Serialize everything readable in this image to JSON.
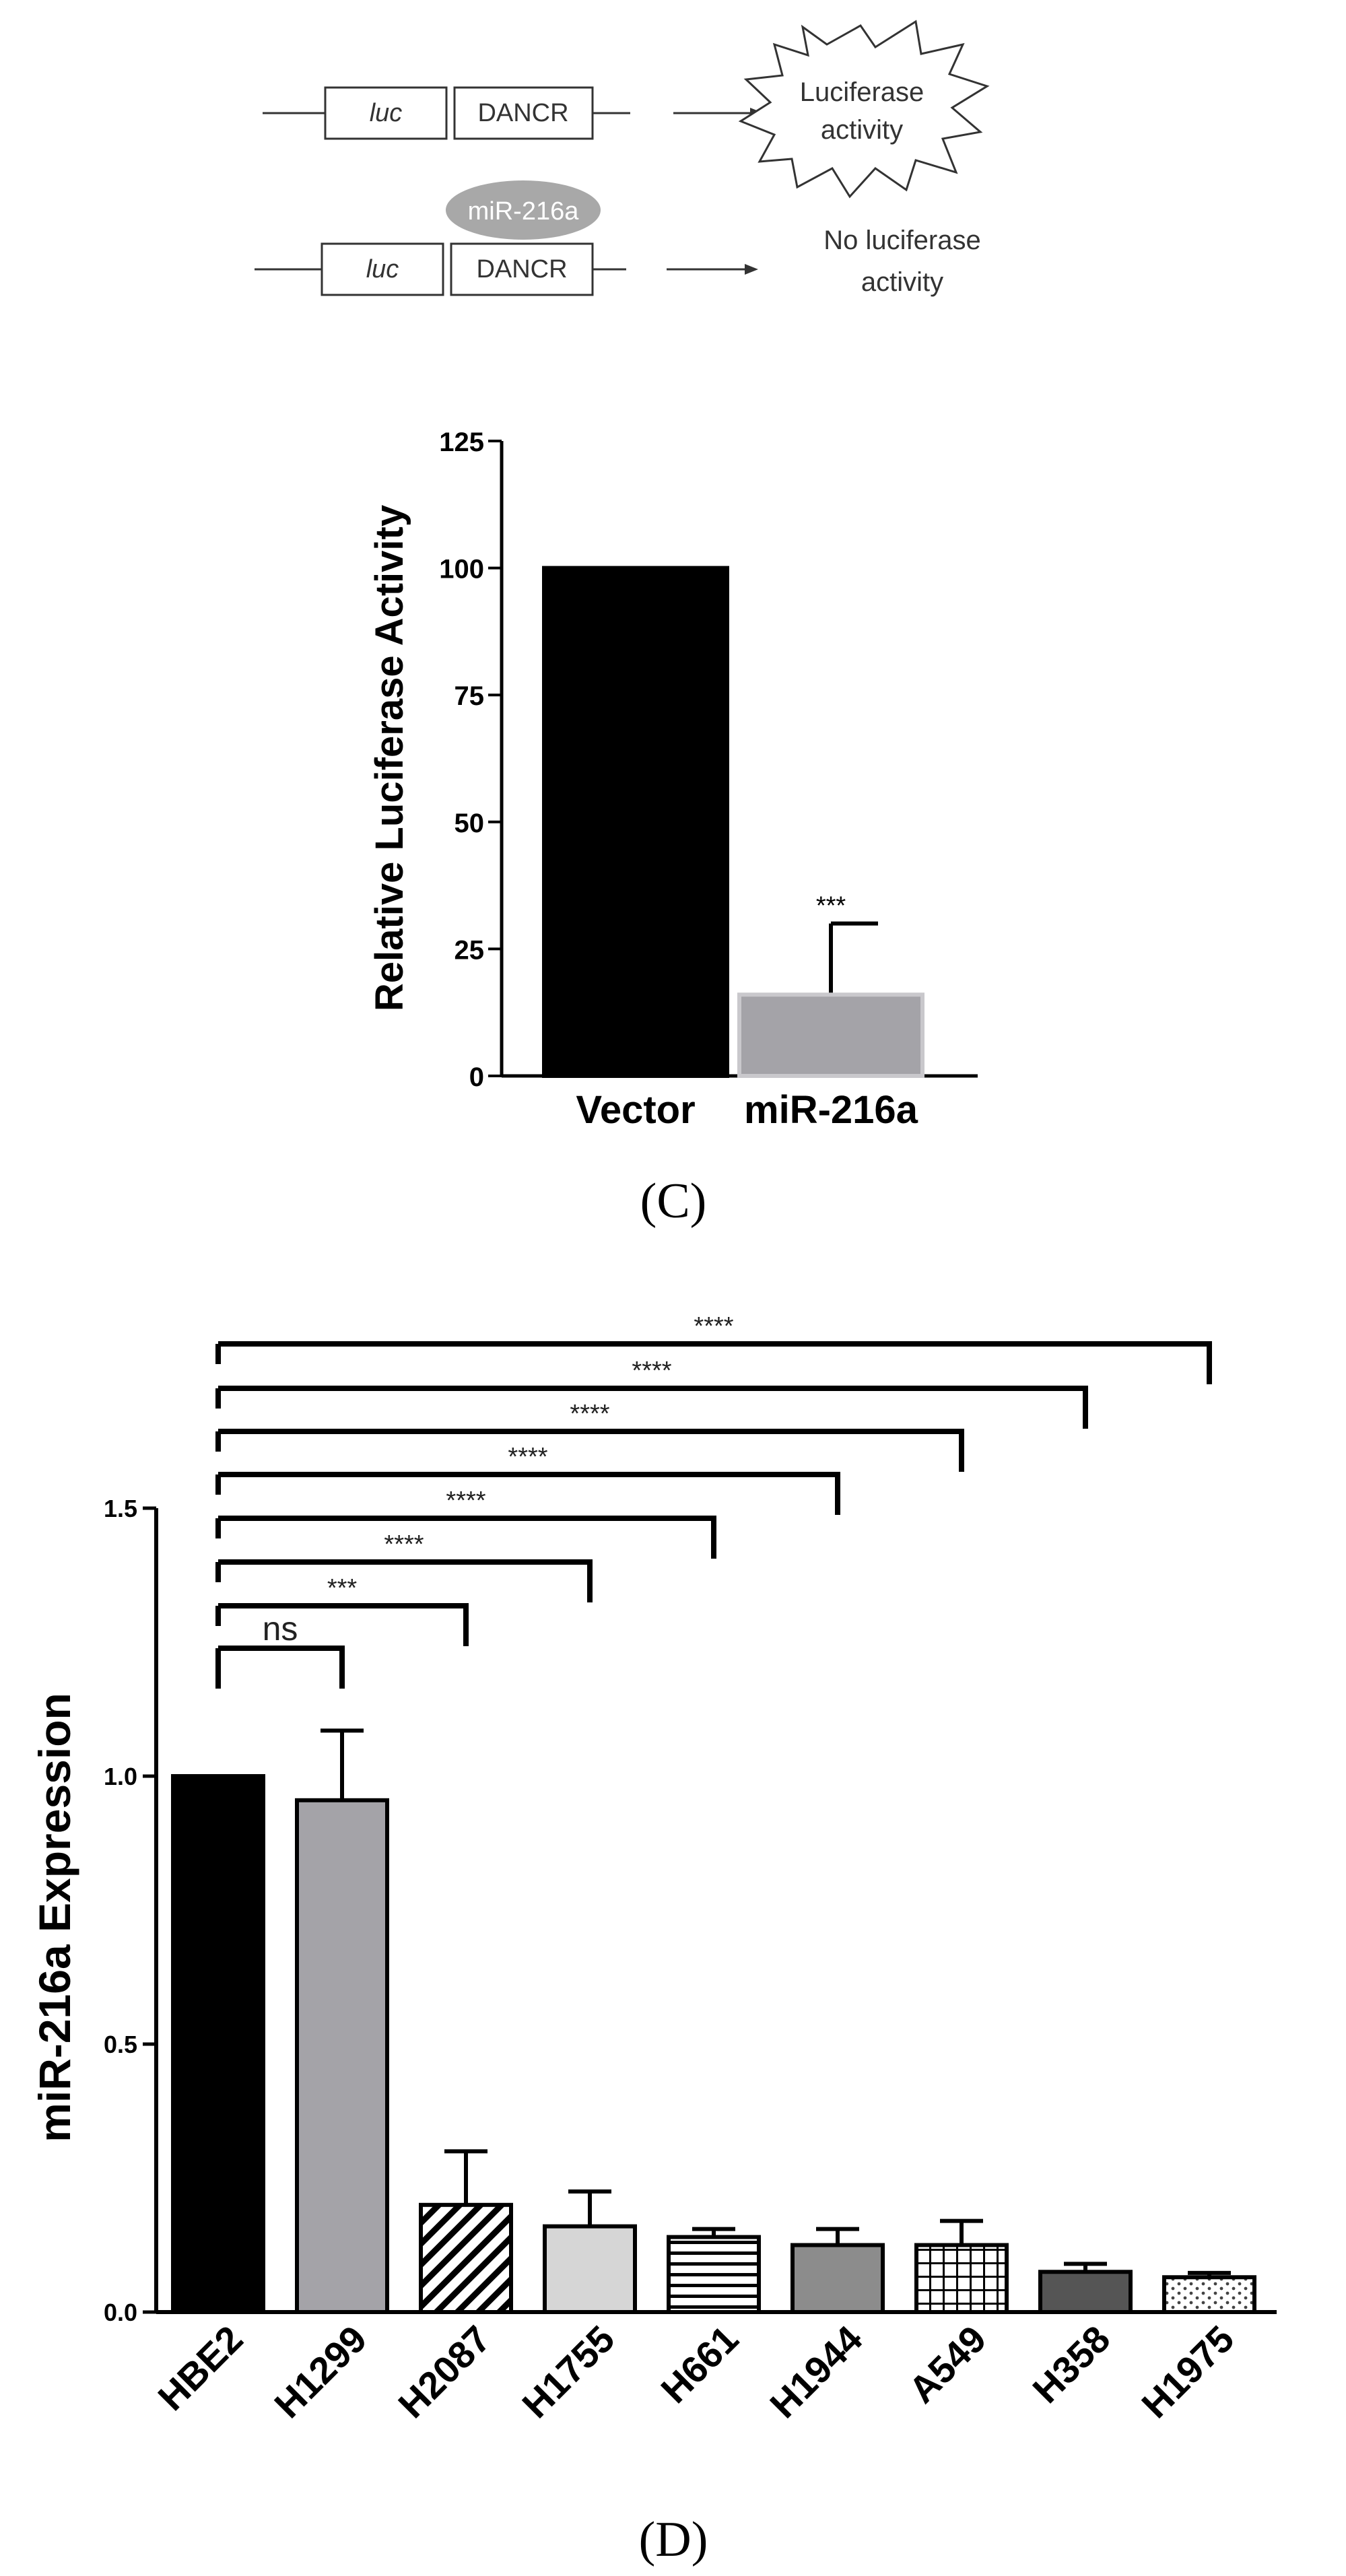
{
  "diagram": {
    "row1": {
      "gene": "luc",
      "target": "DANCR",
      "result_line1": "Luciferase",
      "result_line2": "activity"
    },
    "row2": {
      "mirna": "miR-216a",
      "gene": "luc",
      "target": "DANCR",
      "result_line1": "No luciferase",
      "result_line2": "activity"
    }
  },
  "panel_c_label": "(C)",
  "panel_d_label": "(D)",
  "chart_data": [
    {
      "panel": "C",
      "type": "bar",
      "categories": [
        "Vector",
        "miR-216a"
      ],
      "values": [
        100,
        16
      ],
      "errors": [
        0,
        14
      ],
      "significance": [
        "",
        "***"
      ],
      "colors": [
        "#000000",
        "#a4a3a8"
      ],
      "ylabel": "Relative Luciferase Activity",
      "ylim": [
        0,
        125
      ],
      "yticks": [
        0,
        25,
        50,
        75,
        100,
        125
      ],
      "grid": false
    },
    {
      "panel": "D",
      "type": "bar",
      "categories": [
        "HBE2",
        "H1299",
        "H2087",
        "H1755",
        "H661",
        "H1944",
        "A549",
        "H358",
        "H1975"
      ],
      "values": [
        1.0,
        0.955,
        0.2,
        0.16,
        0.14,
        0.125,
        0.125,
        0.075,
        0.065
      ],
      "errors": [
        0,
        0.13,
        0.1,
        0.065,
        0.015,
        0.03,
        0.045,
        0.015,
        0.008
      ],
      "patterns": [
        "solid-black",
        "solid-gray",
        "diagonal-hatch",
        "solid-light",
        "horizontal-stripes",
        "solid-mid",
        "grid-hatch",
        "solid-dark",
        "dotted"
      ],
      "ylabel": "miR-216a Expression",
      "ylim": [
        0,
        1.5
      ],
      "yticks": [
        "0.0",
        "0.5",
        "1.0",
        "1.5"
      ],
      "grid": false,
      "comparisons": [
        {
          "vs": "H1299",
          "label": "ns"
        },
        {
          "vs": "H2087",
          "label": "***"
        },
        {
          "vs": "H1755",
          "label": "****"
        },
        {
          "vs": "H661",
          "label": "****"
        },
        {
          "vs": "H1944",
          "label": "****"
        },
        {
          "vs": "A549",
          "label": "****"
        },
        {
          "vs": "H358",
          "label": "****"
        },
        {
          "vs": "H1975",
          "label": "****"
        }
      ]
    }
  ]
}
